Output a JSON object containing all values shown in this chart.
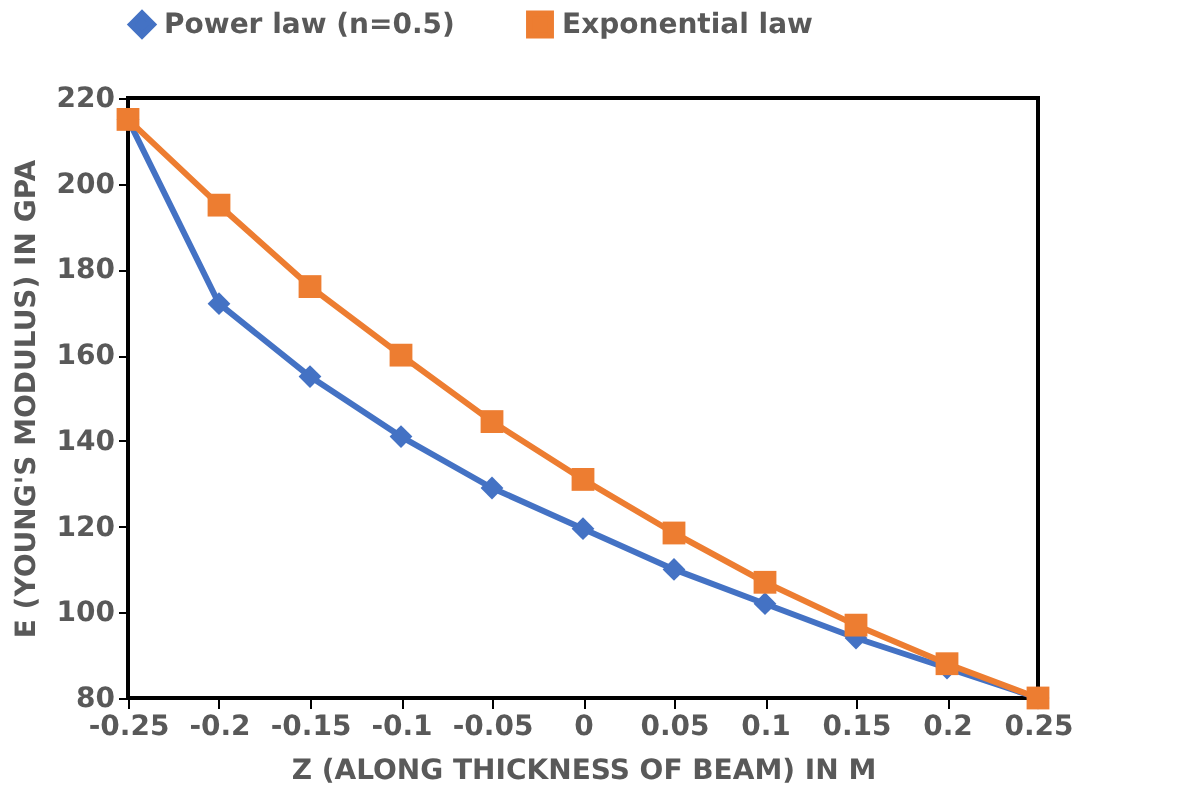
{
  "chart_data": {
    "type": "line",
    "xlabel": "Z (ALONG THICKNESS OF BEAM) IN M",
    "ylabel": "E (YOUNG'S MODULUS) IN GPA",
    "x": [
      -0.25,
      -0.2,
      -0.15,
      -0.1,
      -0.05,
      0,
      0.05,
      0.1,
      0.15,
      0.2,
      0.25
    ],
    "series": [
      {
        "name": "Power law (n=0.5)",
        "color": "#4472c4",
        "marker": "diamond",
        "values": [
          215,
          172,
          155,
          141,
          129,
          119.5,
          110,
          102,
          94,
          87,
          80
        ]
      },
      {
        "name": "Exponential law",
        "color": "#ed7d31",
        "marker": "square",
        "values": [
          215,
          195,
          176,
          160,
          144.5,
          131,
          118.5,
          107,
          97,
          88,
          80
        ]
      }
    ],
    "xlim": [
      -0.25,
      0.25
    ],
    "xticks": [
      -0.25,
      -0.2,
      -0.15,
      -0.1,
      -0.05,
      0,
      0.05,
      0.1,
      0.15,
      0.2,
      0.25
    ],
    "ylim": [
      80,
      220
    ],
    "yticks": [
      80,
      100,
      120,
      140,
      160,
      180,
      200,
      220
    ],
    "grid": false,
    "legend": "top",
    "line_style": "solid"
  }
}
